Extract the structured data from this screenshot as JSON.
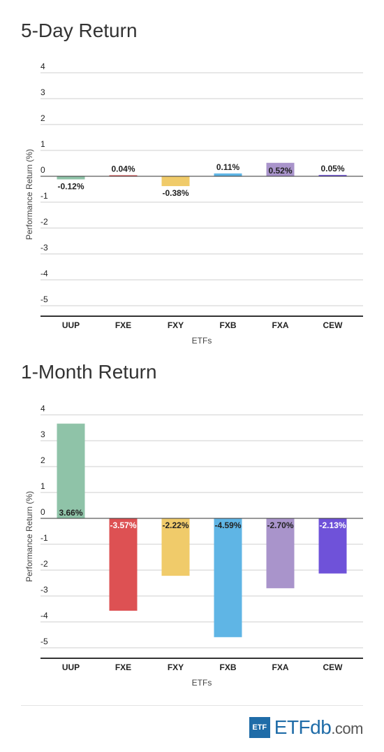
{
  "chart_data": [
    {
      "type": "bar",
      "title": "5-Day Return",
      "xlabel": "ETFs",
      "ylabel": "Performance Return (%)",
      "ylim": [
        -5,
        4
      ],
      "yticks": [
        "4",
        "3",
        "2",
        "1",
        "0",
        "-1",
        "-2",
        "-3",
        "-4",
        "-5"
      ],
      "categories": [
        "UUP",
        "FXE",
        "FXY",
        "FXB",
        "FXA",
        "CEW"
      ],
      "values": [
        -0.12,
        0.04,
        -0.38,
        0.11,
        0.52,
        0.05
      ],
      "labels": [
        "-0.12%",
        "0.04%",
        "-0.38%",
        "0.11%",
        "0.52%",
        "0.05%"
      ],
      "colors": [
        "#8fc3a8",
        "#dd5153",
        "#f0cb6a",
        "#5fb5e5",
        "#a994cb",
        "#6f52d9"
      ],
      "grid": true
    },
    {
      "type": "bar",
      "title": "1-Month Return",
      "xlabel": "ETFs",
      "ylabel": "Performance Return (%)",
      "ylim": [
        -5,
        4
      ],
      "yticks": [
        "4",
        "3",
        "2",
        "1",
        "0",
        "-1",
        "-2",
        "-3",
        "-4",
        "-5"
      ],
      "categories": [
        "UUP",
        "FXE",
        "FXY",
        "FXB",
        "FXA",
        "CEW"
      ],
      "values": [
        3.66,
        -3.57,
        -2.22,
        -4.59,
        -2.7,
        -2.13
      ],
      "labels": [
        "3.66%",
        "-3.57%",
        "-2.22%",
        "-4.59%",
        "-2.70%",
        "-2.13%"
      ],
      "colors": [
        "#8fc3a8",
        "#dd5153",
        "#f0cb6a",
        "#5fb5e5",
        "#a994cb",
        "#6f52d9"
      ],
      "grid": true
    }
  ],
  "logo": {
    "badge": "ETF",
    "main": "ETF",
    "db": "db",
    "suffix": ".com"
  }
}
